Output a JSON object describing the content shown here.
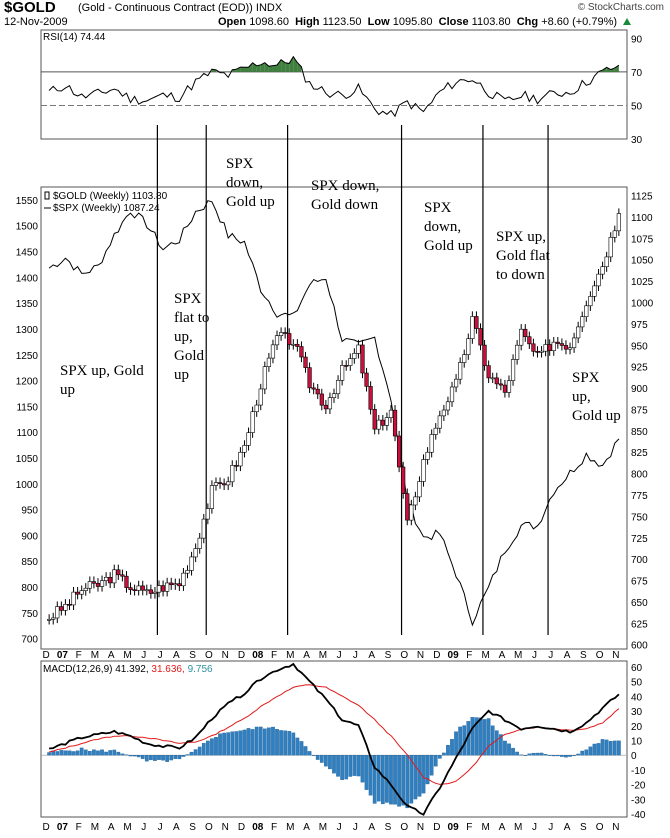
{
  "header": {
    "symbol": "$GOLD",
    "description": "(Gold - Continuous Contract (EOD))  INDX",
    "date": "12-Nov-2009",
    "open_label": "Open",
    "open": "1098.60",
    "high_label": "High",
    "high": "1123.50",
    "low_label": "Low",
    "low": "1095.80",
    "close_label": "Close",
    "close": "1103.80",
    "chg_label": "Chg",
    "chg": "+8.60 (+0.79%)",
    "watermark": "© StockCharts.com",
    "up_color": "#1a8a3a"
  },
  "chart_data": [
    {
      "type": "line",
      "panel": "RSI",
      "legend": "RSI(14) 74.44",
      "ylim": [
        30,
        95
      ],
      "ticks": [
        30,
        50,
        70,
        90
      ],
      "reference_lines": [
        70,
        30
      ],
      "dash_line": 50,
      "x": [
        "2006-12",
        "2007-01",
        "2007-02",
        "2007-03",
        "2007-04",
        "2007-05",
        "2007-06",
        "2007-07",
        "2007-08",
        "2007-09",
        "2007-10",
        "2007-11",
        "2007-12",
        "2008-01",
        "2008-02",
        "2008-03",
        "2008-04",
        "2008-05",
        "2008-06",
        "2008-07",
        "2008-08",
        "2008-09",
        "2008-10",
        "2008-11",
        "2008-12",
        "2009-01",
        "2009-02",
        "2009-03",
        "2009-04",
        "2009-05",
        "2009-06",
        "2009-07",
        "2009-08",
        "2009-09",
        "2009-10",
        "2009-11"
      ],
      "values": [
        58,
        62,
        55,
        57,
        60,
        54,
        53,
        56,
        55,
        64,
        70,
        68,
        72,
        76,
        74,
        78,
        63,
        58,
        56,
        60,
        48,
        44,
        52,
        46,
        58,
        64,
        66,
        58,
        52,
        56,
        54,
        57,
        58,
        64,
        70,
        74
      ]
    },
    {
      "type": "candlestick",
      "panel": "price",
      "legend": [
        {
          "name": "$GOLD (Weekly) 1103.80",
          "marker": "candle"
        },
        {
          "name": "$SPX (Weekly) 1087.24",
          "marker": "line"
        }
      ],
      "left_axis_ticks": [
        700,
        750,
        800,
        850,
        900,
        950,
        1000,
        1050,
        1100,
        1150,
        1200,
        1250,
        1300,
        1350,
        1400,
        1450,
        1500,
        1550
      ],
      "left_axis_range": [
        680,
        1575
      ],
      "right_axis_ticks": [
        600,
        625,
        650,
        675,
        700,
        725,
        750,
        775,
        800,
        825,
        850,
        875,
        900,
        925,
        950,
        975,
        1000,
        1025,
        1050,
        1075,
        1100,
        1125
      ],
      "right_axis_range": [
        595,
        1135
      ],
      "gold_axis": "right",
      "spx_axis": "left",
      "x_ticks": [
        "D",
        "07",
        "F",
        "M",
        "A",
        "M",
        "J",
        "J",
        "A",
        "S",
        "O",
        "N",
        "D",
        "08",
        "F",
        "M",
        "A",
        "M",
        "J",
        "J",
        "A",
        "S",
        "O",
        "N",
        "D",
        "09",
        "F",
        "M",
        "A",
        "M",
        "J",
        "J",
        "A",
        "S",
        "O",
        "N"
      ],
      "x_tick_bold": [
        "07",
        "08",
        "09"
      ],
      "months": [
        "2006-12",
        "2007-01",
        "2007-02",
        "2007-03",
        "2007-04",
        "2007-05",
        "2007-06",
        "2007-07",
        "2007-08",
        "2007-09",
        "2007-10",
        "2007-11",
        "2007-12",
        "2008-01",
        "2008-02",
        "2008-03",
        "2008-04",
        "2008-05",
        "2008-06",
        "2008-07",
        "2008-08",
        "2008-09",
        "2008-10",
        "2008-11",
        "2008-12",
        "2009-01",
        "2009-02",
        "2009-03",
        "2009-04",
        "2009-05",
        "2009-06",
        "2009-07",
        "2009-08",
        "2009-09",
        "2009-10",
        "2009-11"
      ],
      "gold_monthly_close": [
        632,
        645,
        665,
        670,
        682,
        668,
        660,
        668,
        672,
        715,
        780,
        795,
        832,
        905,
        960,
        955,
        905,
        880,
        920,
        945,
        850,
        875,
        740,
        815,
        870,
        905,
        980,
        915,
        895,
        965,
        935,
        955,
        950,
        1002,
        1045,
        1104
      ],
      "spx_monthly_close": [
        1418,
        1438,
        1406,
        1421,
        1482,
        1530,
        1503,
        1455,
        1473,
        1527,
        1549,
        1481,
        1468,
        1378,
        1331,
        1323,
        1386,
        1400,
        1280,
        1267,
        1283,
        1166,
        968,
        896,
        903,
        826,
        735,
        798,
        872,
        919,
        919,
        987,
        1021,
        1057,
        1036,
        1087
      ],
      "event_lines": [
        "2007-07",
        "2007-10",
        "2008-03",
        "2008-10",
        "2009-03",
        "2009-07"
      ],
      "annotations": [
        "SPX up, Gold up",
        "SPX flat to up, Gold up",
        "SPX down, Gold up",
        "SPX down, Gold down",
        "SPX down, Gold up",
        "SPX up, Gold flat to down",
        "SPX up, Gold up"
      ]
    },
    {
      "type": "line",
      "panel": "MACD",
      "legend_prefix": "MACD(12,26,9)",
      "legend_macd": "41.392",
      "legend_signal": "31.636",
      "legend_hist": "9.756",
      "ylim": [
        -42,
        64
      ],
      "ticks": [
        -40,
        -30,
        -20,
        -10,
        0,
        10,
        20,
        30,
        40,
        50,
        60
      ],
      "x": [
        "2006-12",
        "2007-01",
        "2007-02",
        "2007-03",
        "2007-04",
        "2007-05",
        "2007-06",
        "2007-07",
        "2007-08",
        "2007-09",
        "2007-10",
        "2007-11",
        "2007-12",
        "2008-01",
        "2008-02",
        "2008-03",
        "2008-04",
        "2008-05",
        "2008-06",
        "2008-07",
        "2008-08",
        "2008-09",
        "2008-10",
        "2008-11",
        "2008-12",
        "2009-01",
        "2009-02",
        "2009-03",
        "2009-04",
        "2009-05",
        "2009-06",
        "2009-07",
        "2009-08",
        "2009-09",
        "2009-10",
        "2009-11"
      ],
      "series": [
        {
          "name": "MACD",
          "color": "#000000",
          "values": [
            4,
            8,
            12,
            14,
            16,
            13,
            8,
            6,
            5,
            12,
            25,
            35,
            42,
            52,
            58,
            62,
            50,
            38,
            24,
            20,
            -8,
            -20,
            -35,
            -40,
            -22,
            -2,
            18,
            30,
            24,
            18,
            20,
            18,
            16,
            22,
            32,
            41.4
          ]
        },
        {
          "name": "Signal",
          "color": "#e01b1b",
          "values": [
            2,
            5,
            8,
            11,
            13,
            13,
            12,
            10,
            8,
            9,
            13,
            19,
            25,
            33,
            40,
            46,
            48,
            46,
            40,
            34,
            24,
            13,
            0,
            -15,
            -20,
            -18,
            -8,
            6,
            14,
            18,
            19,
            18,
            17,
            18,
            22,
            31.6
          ]
        },
        {
          "name": "Histogram",
          "color": "#2f7fc1",
          "values": [
            2,
            3,
            4,
            3,
            3,
            0,
            -4,
            -4,
            -3,
            3,
            12,
            16,
            17,
            19,
            18,
            16,
            2,
            -8,
            -16,
            -14,
            -32,
            -33,
            -35,
            -25,
            -2,
            16,
            26,
            24,
            10,
            0,
            1,
            0,
            -1,
            4,
            10,
            9.8
          ]
        }
      ]
    }
  ]
}
